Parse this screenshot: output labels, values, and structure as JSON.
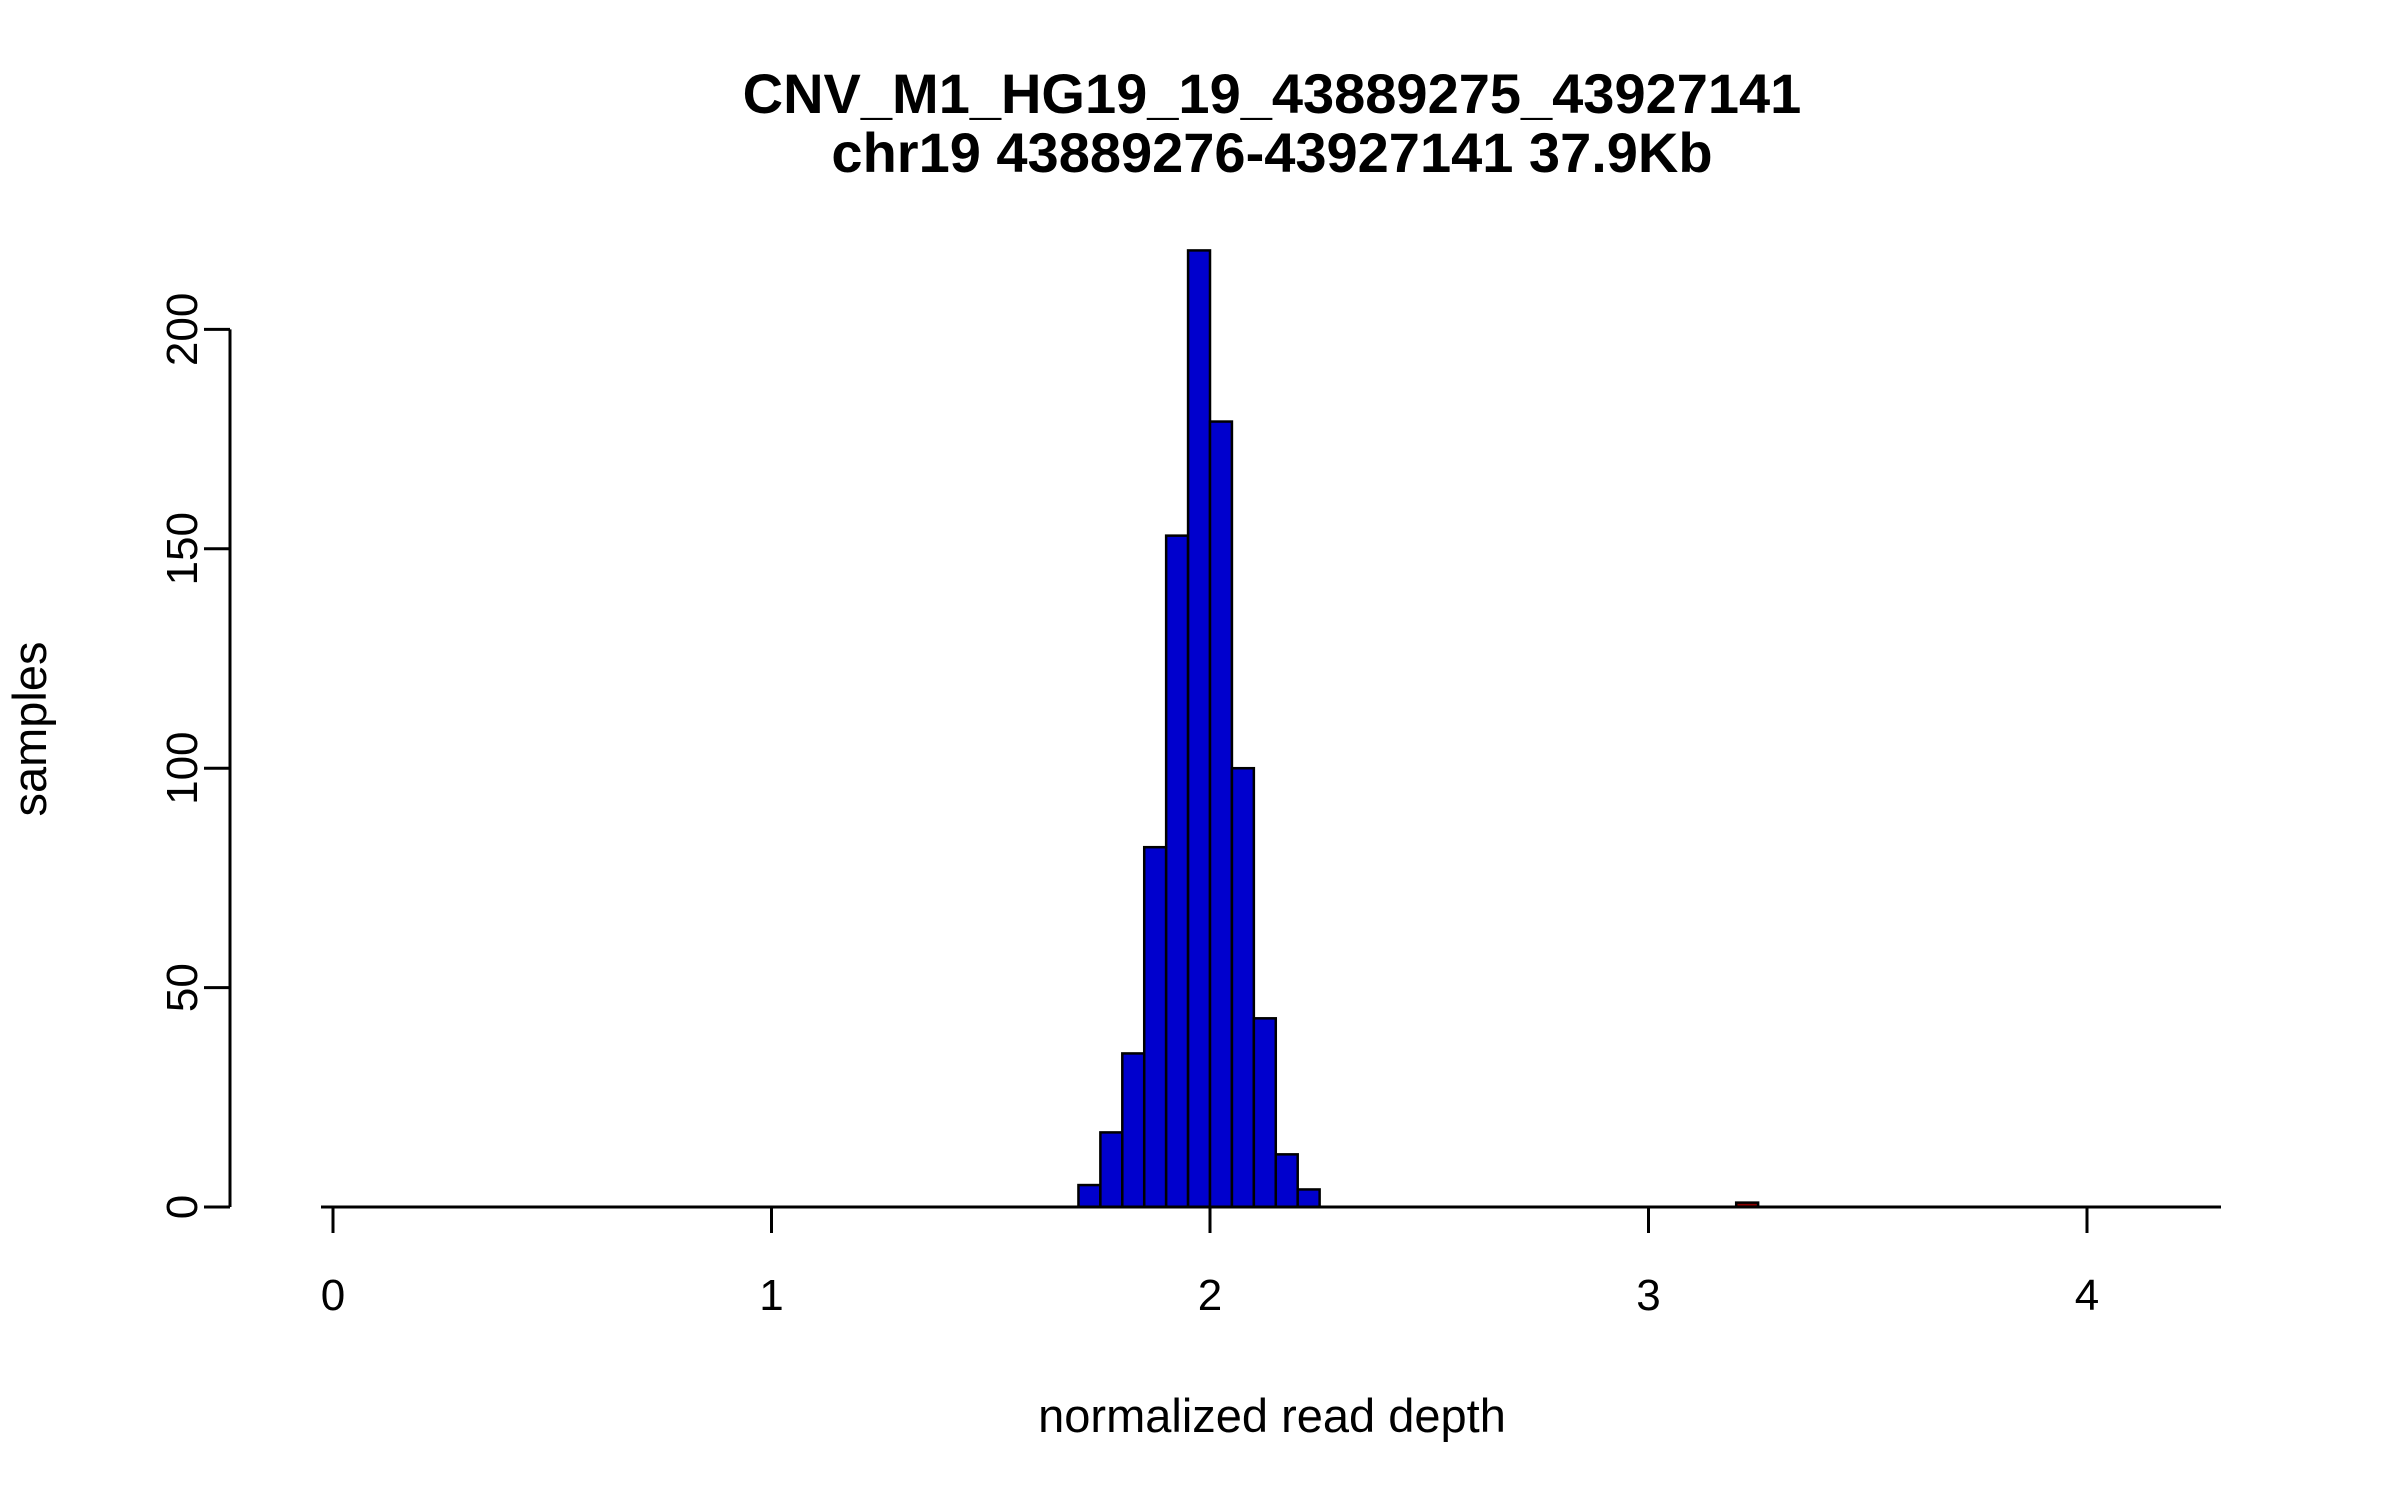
{
  "chart_data": {
    "type": "bar",
    "subtype": "histogram",
    "title": "CNV_M1_HG19_19_43889275_43927141",
    "subtitle": "chr19 43889276-43927141 37.9Kb",
    "xlabel": "normalized read depth",
    "ylabel": "samples",
    "xlim": [
      0,
      4.3
    ],
    "ylim": [
      0,
      220
    ],
    "x_ticks": [
      0,
      1,
      2,
      3,
      4
    ],
    "y_ticks": [
      0,
      50,
      100,
      150,
      200
    ],
    "grid": false,
    "legend": false,
    "bin_width": 0.05,
    "bar_color": "#0000CD",
    "bar_border": "#000000",
    "bars": [
      {
        "x0": 1.7,
        "count": 5
      },
      {
        "x0": 1.75,
        "count": 17
      },
      {
        "x0": 1.8,
        "count": 35
      },
      {
        "x0": 1.85,
        "count": 82
      },
      {
        "x0": 1.9,
        "count": 153
      },
      {
        "x0": 1.95,
        "count": 218
      },
      {
        "x0": 2.0,
        "count": 179
      },
      {
        "x0": 2.05,
        "count": 100
      },
      {
        "x0": 2.1,
        "count": 43
      },
      {
        "x0": 2.15,
        "count": 12
      },
      {
        "x0": 2.2,
        "count": 4
      },
      {
        "x0": 3.2,
        "count": 1,
        "color": "#8B0000"
      }
    ]
  }
}
